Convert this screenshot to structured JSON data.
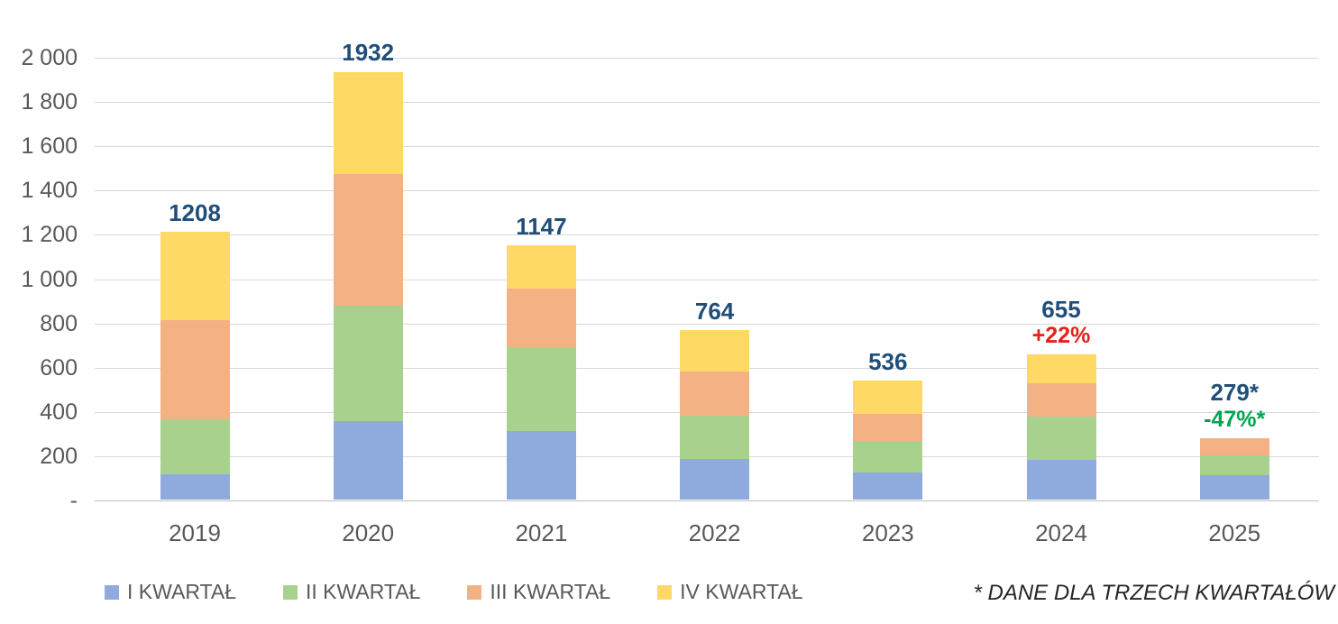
{
  "chart_data": {
    "type": "bar",
    "stacked": true,
    "title": "",
    "xlabel": "",
    "ylabel": "",
    "categories": [
      "2019",
      "2020",
      "2021",
      "2022",
      "2023",
      "2024",
      "2025"
    ],
    "series": [
      {
        "name": "I KWARTAŁ",
        "color": "#8FAADC",
        "values": [
          113,
          355,
          308,
          184,
          123,
          180,
          110
        ]
      },
      {
        "name": "II KWARTAŁ",
        "color": "#A9D18E",
        "values": [
          250,
          520,
          376,
          195,
          141,
          195,
          89
        ]
      },
      {
        "name": "III KWARTAŁ",
        "color": "#F4B183",
        "values": [
          447,
          597,
          268,
          201,
          125,
          149,
          80
        ]
      },
      {
        "name": "IV KWARTAŁ",
        "color": "#FFD966",
        "values": [
          398,
          460,
          195,
          184,
          147,
          131,
          0
        ]
      }
    ],
    "totals": [
      1208,
      1932,
      1147,
      764,
      536,
      655,
      279
    ],
    "total_labels": [
      "1208",
      "1932",
      "1147",
      "764",
      "536",
      "655",
      "279*"
    ],
    "annotations": [
      {
        "category_index": 5,
        "text": "+22%",
        "color": "#E32119"
      },
      {
        "category_index": 6,
        "text": "-47%*",
        "color": "#00A550"
      }
    ],
    "ylim": [
      0,
      2000
    ],
    "ytick_interval": 200,
    "ytick_labels": [
      "2 000",
      "1 800",
      "1 600",
      "1 400",
      "1 200",
      "1 000",
      "800",
      "600",
      "400",
      "200",
      "-"
    ],
    "grid": true,
    "legend_position": "bottom"
  },
  "colors": {
    "total_label": "#1F4E79",
    "axis_text": "#595959",
    "gridline": "#D9D9D9"
  },
  "footnote": "* DANE DLA TRZECH KWARTAŁÓW"
}
